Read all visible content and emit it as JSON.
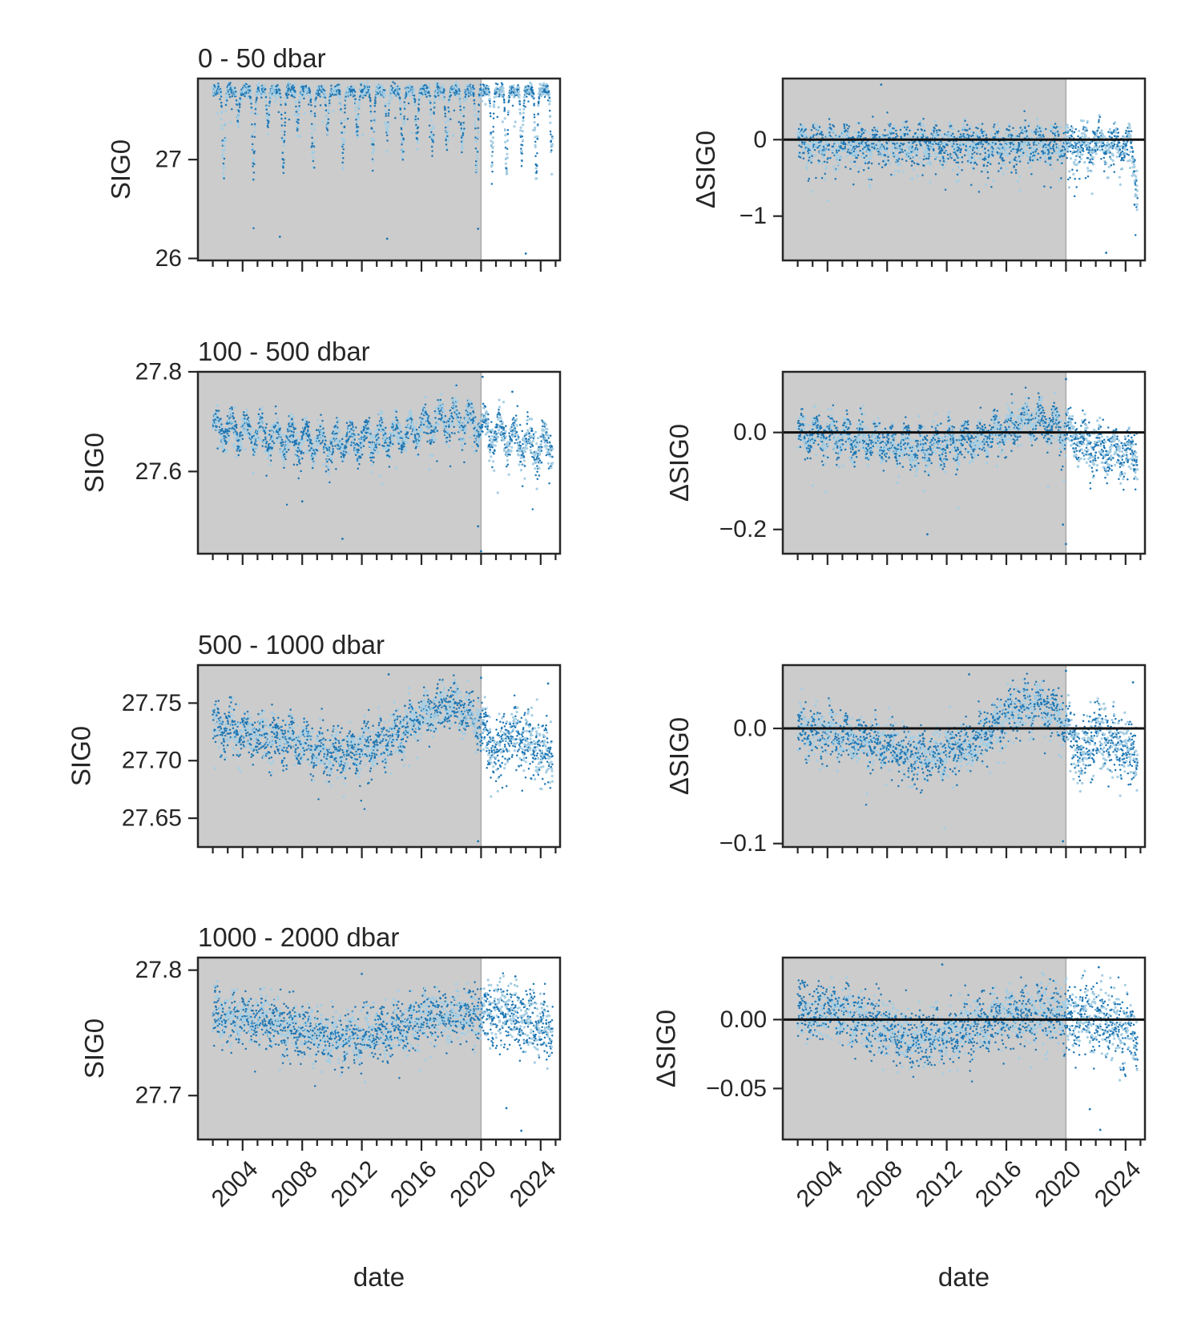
{
  "figure": {
    "xlabel": "date",
    "colors": {
      "baseline_shade": "#cccccc",
      "points_dark": "#1f77b4",
      "points_light": "#a6cee3",
      "zero_line": "#111111",
      "cutoff_line": "#aaaaaa"
    }
  },
  "chart_data": [
    {
      "type": "scatter",
      "panel": "left-row-1",
      "title": "0 - 50 dbar",
      "ylabel": "SIG0",
      "xlabel": "",
      "xlim": [
        2001,
        2025.3
      ],
      "ylim": [
        25.98,
        27.82
      ],
      "xticks": [
        "2004",
        "2008",
        "2012",
        "2016",
        "2020",
        "2024"
      ],
      "show_x_tick_labels": false,
      "yticks": [
        {
          "v": 26,
          "label": "26"
        },
        {
          "v": 27,
          "label": "27"
        }
      ],
      "shade_range": [
        2001,
        2020.0
      ],
      "pattern": {
        "kind": "seasonal",
        "base": 27.7,
        "amplitude": 1.15,
        "noise": 0.03,
        "outlier_rate": 0.04,
        "start": 2002.0,
        "end": 2024.8
      },
      "outliers": [
        {
          "x": 2006.5,
          "y": 26.22
        },
        {
          "x": 2013.7,
          "y": 26.2
        },
        {
          "x": 2023.0,
          "y": 26.05
        },
        {
          "x": 2019.8,
          "y": 26.3
        }
      ]
    },
    {
      "type": "scatter",
      "panel": "right-row-1",
      "title": "",
      "ylabel": "ΔSIG0",
      "xlabel": "",
      "xlim": [
        2001,
        2025.3
      ],
      "ylim": [
        -1.58,
        0.8
      ],
      "xticks": [
        "2004",
        "2008",
        "2012",
        "2016",
        "2020",
        "2024"
      ],
      "show_x_tick_labels": false,
      "yticks": [
        {
          "v": -1,
          "label": "−1"
        },
        {
          "v": 0,
          "label": "0"
        }
      ],
      "shade_range": [
        2001,
        2020.0
      ],
      "zero_line": true,
      "pattern": {
        "kind": "anomaly",
        "sd": 0.18,
        "noise": 0.1,
        "seasonal": 0.15,
        "outlier_rate": 0.05,
        "start": 2002.0,
        "end": 2024.8
      },
      "outliers": [
        {
          "x": 2007.6,
          "y": 0.72
        },
        {
          "x": 2022.7,
          "y": -1.48
        },
        {
          "x": 2024.6,
          "y": -0.85
        }
      ]
    },
    {
      "type": "scatter",
      "panel": "left-row-2",
      "title": "100 - 500 dbar",
      "ylabel": "SIG0",
      "xlabel": "",
      "xlim": [
        2001,
        2025.3
      ],
      "ylim": [
        27.435,
        27.8
      ],
      "xticks": [
        "2004",
        "2008",
        "2012",
        "2016",
        "2020",
        "2024"
      ],
      "show_x_tick_labels": false,
      "yticks": [
        {
          "v": 27.6,
          "label": "27.6"
        },
        {
          "v": 27.8,
          "label": "27.8"
        }
      ],
      "shade_range": [
        2001,
        2020.0
      ],
      "pattern": {
        "kind": "trend",
        "knots": [
          [
            2002,
            27.69
          ],
          [
            2006,
            27.67
          ],
          [
            2010,
            27.655
          ],
          [
            2014,
            27.67
          ],
          [
            2018,
            27.71
          ],
          [
            2020,
            27.69
          ],
          [
            2022,
            27.665
          ],
          [
            2024.8,
            27.645
          ]
        ],
        "amplitude": 0.025,
        "noise": 0.015,
        "outlier_rate": 0.03,
        "start": 2002.0,
        "end": 2024.8
      },
      "outliers": [
        {
          "x": 2010.7,
          "y": 27.465
        },
        {
          "x": 2020.0,
          "y": 27.44
        },
        {
          "x": 2019.8,
          "y": 27.49
        },
        {
          "x": 2020.1,
          "y": 27.79
        },
        {
          "x": 2008.0,
          "y": 27.54
        },
        {
          "x": 2022.1,
          "y": 27.76
        }
      ]
    },
    {
      "type": "scatter",
      "panel": "right-row-2",
      "title": "",
      "ylabel": "ΔSIG0",
      "xlabel": "",
      "xlim": [
        2001,
        2025.3
      ],
      "ylim": [
        -0.25,
        0.125
      ],
      "xticks": [
        "2004",
        "2008",
        "2012",
        "2016",
        "2020",
        "2024"
      ],
      "show_x_tick_labels": false,
      "yticks": [
        {
          "v": -0.2,
          "label": "−0.2"
        },
        {
          "v": 0.0,
          "label": "0.0"
        }
      ],
      "shade_range": [
        2001,
        2020.0
      ],
      "zero_line": true,
      "pattern": {
        "kind": "trend",
        "knots": [
          [
            2002,
            0.0
          ],
          [
            2006,
            -0.015
          ],
          [
            2010,
            -0.03
          ],
          [
            2014,
            -0.015
          ],
          [
            2018,
            0.03
          ],
          [
            2020,
            0.0
          ],
          [
            2022,
            -0.03
          ],
          [
            2024.8,
            -0.05
          ]
        ],
        "amplitude": 0.02,
        "noise": 0.018,
        "outlier_rate": 0.03,
        "start": 2002.0,
        "end": 2024.8
      },
      "outliers": [
        {
          "x": 2010.7,
          "y": -0.21
        },
        {
          "x": 2019.8,
          "y": -0.19
        },
        {
          "x": 2020.0,
          "y": -0.23
        },
        {
          "x": 2020.0,
          "y": 0.11
        }
      ]
    },
    {
      "type": "scatter",
      "panel": "left-row-3",
      "title": "500 - 1000 dbar",
      "ylabel": "SIG0",
      "xlabel": "",
      "xlim": [
        2001,
        2025.3
      ],
      "ylim": [
        27.625,
        27.783
      ],
      "xticks": [
        "2004",
        "2008",
        "2012",
        "2016",
        "2020",
        "2024"
      ],
      "show_x_tick_labels": false,
      "yticks": [
        {
          "v": 27.65,
          "label": "27.65"
        },
        {
          "v": 27.7,
          "label": "27.70"
        },
        {
          "v": 27.75,
          "label": "27.75"
        }
      ],
      "shade_range": [
        2001,
        2020.0
      ],
      "pattern": {
        "kind": "trend",
        "knots": [
          [
            2002,
            27.73
          ],
          [
            2004,
            27.725
          ],
          [
            2006,
            27.72
          ],
          [
            2008,
            27.715
          ],
          [
            2010,
            27.705
          ],
          [
            2012,
            27.71
          ],
          [
            2014,
            27.72
          ],
          [
            2016,
            27.74
          ],
          [
            2018,
            27.75
          ],
          [
            2020,
            27.73
          ],
          [
            2021,
            27.705
          ],
          [
            2022,
            27.725
          ],
          [
            2023.5,
            27.715
          ],
          [
            2024.8,
            27.705
          ]
        ],
        "amplitude": 0.006,
        "noise": 0.01,
        "outlier_rate": 0.03,
        "start": 2002.0,
        "end": 2024.8
      },
      "outliers": [
        {
          "x": 2013.8,
          "y": 27.775
        },
        {
          "x": 2020.0,
          "y": 27.772
        },
        {
          "x": 2019.8,
          "y": 27.63
        },
        {
          "x": 2024.5,
          "y": 27.767
        }
      ]
    },
    {
      "type": "scatter",
      "panel": "right-row-3",
      "title": "",
      "ylabel": "ΔSIG0",
      "xlabel": "",
      "xlim": [
        2001,
        2025.3
      ],
      "ylim": [
        -0.103,
        0.055
      ],
      "xticks": [
        "2004",
        "2008",
        "2012",
        "2016",
        "2020",
        "2024"
      ],
      "show_x_tick_labels": false,
      "yticks": [
        {
          "v": -0.1,
          "label": "−0.1"
        },
        {
          "v": 0.0,
          "label": "0.0"
        }
      ],
      "shade_range": [
        2001,
        2020.0
      ],
      "zero_line": true,
      "pattern": {
        "kind": "trend",
        "knots": [
          [
            2002,
            0.0
          ],
          [
            2004,
            -0.005
          ],
          [
            2006,
            -0.01
          ],
          [
            2008,
            -0.015
          ],
          [
            2010,
            -0.025
          ],
          [
            2012,
            -0.02
          ],
          [
            2014,
            -0.01
          ],
          [
            2016,
            0.012
          ],
          [
            2018,
            0.022
          ],
          [
            2020,
            0.005
          ],
          [
            2021,
            -0.025
          ],
          [
            2022,
            -0.005
          ],
          [
            2023.5,
            -0.015
          ],
          [
            2024.8,
            -0.025
          ]
        ],
        "amplitude": 0.006,
        "noise": 0.01,
        "outlier_rate": 0.03,
        "start": 2002.0,
        "end": 2024.8
      },
      "outliers": [
        {
          "x": 2013.5,
          "y": 0.047
        },
        {
          "x": 2020.0,
          "y": 0.05
        },
        {
          "x": 2019.8,
          "y": -0.098
        },
        {
          "x": 2024.5,
          "y": 0.04
        }
      ]
    },
    {
      "type": "scatter",
      "panel": "left-row-4",
      "title": "1000 - 2000 dbar",
      "ylabel": "SIG0",
      "xlabel": "date",
      "xlim": [
        2001,
        2025.3
      ],
      "ylim": [
        27.665,
        27.81
      ],
      "xticks": [
        "2004",
        "2008",
        "2012",
        "2016",
        "2020",
        "2024"
      ],
      "show_x_tick_labels": true,
      "yticks": [
        {
          "v": 27.7,
          "label": "27.7"
        },
        {
          "v": 27.8,
          "label": "27.8"
        }
      ],
      "shade_range": [
        2001,
        2020.0
      ],
      "pattern": {
        "kind": "trend",
        "knots": [
          [
            2002,
            27.765
          ],
          [
            2006,
            27.76
          ],
          [
            2010,
            27.745
          ],
          [
            2013,
            27.75
          ],
          [
            2016,
            27.76
          ],
          [
            2018,
            27.765
          ],
          [
            2020,
            27.765
          ],
          [
            2022,
            27.765
          ],
          [
            2024.8,
            27.75
          ]
        ],
        "amplitude": 0.004,
        "noise": 0.01,
        "outlier_rate": 0.03,
        "start": 2002.0,
        "end": 2024.8
      },
      "outliers": [
        {
          "x": 2012.0,
          "y": 27.797
        },
        {
          "x": 2021.7,
          "y": 27.69
        },
        {
          "x": 2022.7,
          "y": 27.672
        },
        {
          "x": 2022.3,
          "y": 27.795
        }
      ]
    },
    {
      "type": "scatter",
      "panel": "right-row-4",
      "title": "",
      "ylabel": "ΔSIG0",
      "xlabel": "date",
      "xlim": [
        2001,
        2025.3
      ],
      "ylim": [
        -0.087,
        0.045
      ],
      "xticks": [
        "2004",
        "2008",
        "2012",
        "2016",
        "2020",
        "2024"
      ],
      "show_x_tick_labels": true,
      "yticks": [
        {
          "v": -0.05,
          "label": "−0.05"
        },
        {
          "v": 0.0,
          "label": "0.00"
        }
      ],
      "shade_range": [
        2001,
        2020.0
      ],
      "zero_line": true,
      "pattern": {
        "kind": "trend",
        "knots": [
          [
            2002,
            0.008
          ],
          [
            2006,
            0.002
          ],
          [
            2010,
            -0.015
          ],
          [
            2013,
            -0.008
          ],
          [
            2016,
            0.002
          ],
          [
            2018,
            0.004
          ],
          [
            2020,
            0.004
          ],
          [
            2022,
            0.002
          ],
          [
            2024.8,
            -0.01
          ]
        ],
        "amplitude": 0.004,
        "noise": 0.01,
        "outlier_rate": 0.03,
        "start": 2002.0,
        "end": 2024.8
      },
      "outliers": [
        {
          "x": 2011.7,
          "y": 0.04
        },
        {
          "x": 2021.6,
          "y": -0.065
        },
        {
          "x": 2022.3,
          "y": -0.08
        },
        {
          "x": 2022.2,
          "y": 0.038
        }
      ]
    }
  ]
}
